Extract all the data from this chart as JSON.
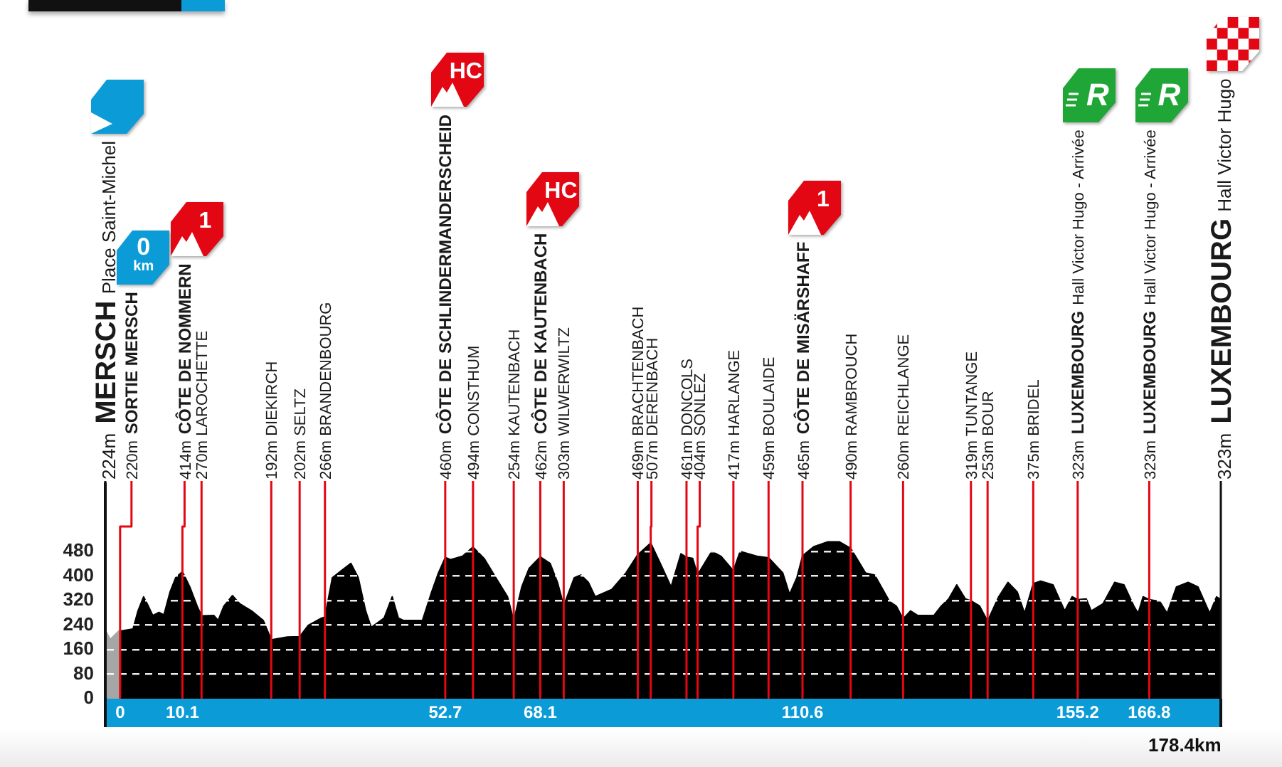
{
  "chart_data": {
    "type": "area",
    "series": [
      {
        "color": "#a6a6a6",
        "x": [
          -2.4,
          -1.6,
          -0.2,
          0
        ],
        "values": [
          224,
          193,
          221,
          220
        ]
      },
      {
        "color": "#000000",
        "x": [
          0,
          2.1,
          2.9,
          3.8,
          4.4,
          5.3,
          6.3,
          7.1,
          8.1,
          9.0,
          10.1,
          11.3,
          12.5,
          13.2,
          15.2,
          15.9,
          16.8,
          18.2,
          19.4,
          21.3,
          23.2,
          24.5,
          27.1,
          29.1,
          30.5,
          32.6,
          33.2,
          34.4,
          35.9,
          37.4,
          38.6,
          39.8,
          40.7,
          42.8,
          44.1,
          45.1,
          45.9,
          49.0,
          50.5,
          51.6,
          52.7,
          53.6,
          55.5,
          57.2,
          59.0,
          60.9,
          62.8,
          63.8,
          65.1,
          66.3,
          68.1,
          69.7,
          70.9,
          71.9,
          73.6,
          74.7,
          75.9,
          77.0,
          79.7,
          82.0,
          83.9,
          86.0,
          87.8,
          89.3,
          90.9,
          91.8,
          92.8,
          93.6,
          95.9,
          97.4,
          99.4,
          100.5,
          103.2,
          105.1,
          107.4,
          108.5,
          109.7,
          110.6,
          112.4,
          114.7,
          116.6,
          118.4,
          120.8,
          122.3,
          124.7,
          125.8,
          126.9,
          128.1,
          129.3,
          131.9,
          133.1,
          134.3,
          135.6,
          137.0,
          137.9,
          139.3,
          140.6,
          142.4,
          143.9,
          145.4,
          146.6,
          148.0,
          149.2,
          151.2,
          153.1,
          154.3,
          155.2,
          156.6,
          157.4,
          159.3,
          161.2,
          162.7,
          164.3,
          165.0,
          165.8,
          166.8,
          168.5,
          169.7,
          171.2,
          173.1,
          174.7,
          176.6,
          177.7,
          178.4
        ],
        "values": [
          220,
          227,
          286,
          332,
          309,
          271,
          281,
          273,
          348,
          394,
          414,
          364,
          301,
          270,
          271,
          255,
          301,
          336,
          309,
          286,
          255,
          192,
          201,
          202,
          239,
          262,
          266,
          394,
          418,
          441,
          394,
          286,
          232,
          263,
          332,
          263,
          255,
          255,
          348,
          410,
          460,
          453,
          464,
          494,
          457,
          394,
          332,
          254,
          364,
          425,
          462,
          441,
          379,
          303,
          394,
          403,
          379,
          332,
          356,
          410,
          469,
          507,
          430,
          364,
          472,
          461,
          457,
          404,
          480,
          464,
          417,
          480,
          464,
          459,
          410,
          340,
          395,
          465,
          495,
          511,
          511,
          490,
          410,
          403,
          317,
          302,
          260,
          286,
          271,
          271,
          302,
          325,
          371,
          325,
          319,
          302,
          253,
          332,
          379,
          348,
          278,
          375,
          383,
          371,
          286,
          332,
          323,
          325,
          286,
          309,
          379,
          371,
          302,
          278,
          332,
          323,
          317,
          278,
          364,
          379,
          364,
          278,
          332,
          323
        ]
      }
    ],
    "xlim": [
      -2.4,
      178.4
    ],
    "xticks": [
      0,
      10.1,
      52.7,
      68.1,
      110.6,
      155.2,
      166.8
    ],
    "ylim": [
      0,
      700
    ],
    "yticks": [
      0,
      80,
      160,
      240,
      320,
      400,
      480
    ],
    "grid": "y",
    "ref_lines": [
      {
        "axis": "x",
        "value": -2.4,
        "label": "224m MERSCH Place Saint-Michel",
        "color": "#111111"
      },
      {
        "axis": "x",
        "value": 0,
        "label": "220m SORTIE MERSCH",
        "color": "#e30613"
      },
      {
        "axis": "x",
        "value": 10.1,
        "label": "414m CÔTE DE NOMMERN",
        "color": "#e30613"
      },
      {
        "axis": "x",
        "value": 13.2,
        "label": "270m LAROCHETTE",
        "color": "#e30613"
      },
      {
        "axis": "x",
        "value": 24.5,
        "label": "192m DIEKIRCH",
        "color": "#e30613"
      },
      {
        "axis": "x",
        "value": 29.1,
        "label": "202m SELTZ",
        "color": "#e30613"
      },
      {
        "axis": "x",
        "value": 33.2,
        "label": "266m BRANDENBOURG",
        "color": "#e30613"
      },
      {
        "axis": "x",
        "value": 52.7,
        "label": "460m CÔTE DE SCHLINDERMANDERSCHEID",
        "color": "#e30613"
      },
      {
        "axis": "x",
        "value": 57.2,
        "label": "494m CONSTHUM",
        "color": "#e30613"
      },
      {
        "axis": "x",
        "value": 63.8,
        "label": "254m KAUTENBACH",
        "color": "#e30613"
      },
      {
        "axis": "x",
        "value": 68.1,
        "label": "462m CÔTE DE KAUTENBACH",
        "color": "#e30613"
      },
      {
        "axis": "x",
        "value": 71.9,
        "label": "303m WILWERWILTZ",
        "color": "#e30613"
      },
      {
        "axis": "x",
        "value": 83.9,
        "label": "469m BRACHTENBACH",
        "color": "#e30613"
      },
      {
        "axis": "x",
        "value": 86.0,
        "label": "507m DERENBACH",
        "color": "#e30613"
      },
      {
        "axis": "x",
        "value": 91.8,
        "label": "461m DONCOLS",
        "color": "#e30613"
      },
      {
        "axis": "x",
        "value": 93.6,
        "label": "404m SONLEZ",
        "color": "#e30613"
      },
      {
        "axis": "x",
        "value": 99.4,
        "label": "417m HARLANGE",
        "color": "#e30613"
      },
      {
        "axis": "x",
        "value": 105.1,
        "label": "459m BOULAIDE",
        "color": "#e30613"
      },
      {
        "axis": "x",
        "value": 110.6,
        "label": "465m CÔTE DE MISÄRSHAFF",
        "color": "#e30613"
      },
      {
        "axis": "x",
        "value": 118.4,
        "label": "490m RAMBROUCH",
        "color": "#e30613"
      },
      {
        "axis": "x",
        "value": 126.9,
        "label": "260m REICHLANGE",
        "color": "#e30613"
      },
      {
        "axis": "x",
        "value": 137.9,
        "label": "319m TUNTANGE",
        "color": "#e30613"
      },
      {
        "axis": "x",
        "value": 140.6,
        "label": "253m BOUR",
        "color": "#e30613"
      },
      {
        "axis": "x",
        "value": 148.0,
        "label": "375m BRIDEL",
        "color": "#e30613"
      },
      {
        "axis": "x",
        "value": 155.2,
        "label": "323m LUXEMBOURG Hall Victor Hugo - Arrivée",
        "color": "#e30613"
      },
      {
        "axis": "x",
        "value": 166.8,
        "label": "323m LUXEMBOURG Hall Victor Hugo - Arrivée",
        "color": "#e30613"
      },
      {
        "axis": "x",
        "value": 178.4,
        "label": "323m LUXEMBOURG Hall Victor Hugo",
        "color": "#111111"
      }
    ],
    "annotations": [
      "0 km",
      "1",
      "HC",
      "HC",
      "1",
      "R",
      "R",
      "178.4km"
    ]
  }
}
